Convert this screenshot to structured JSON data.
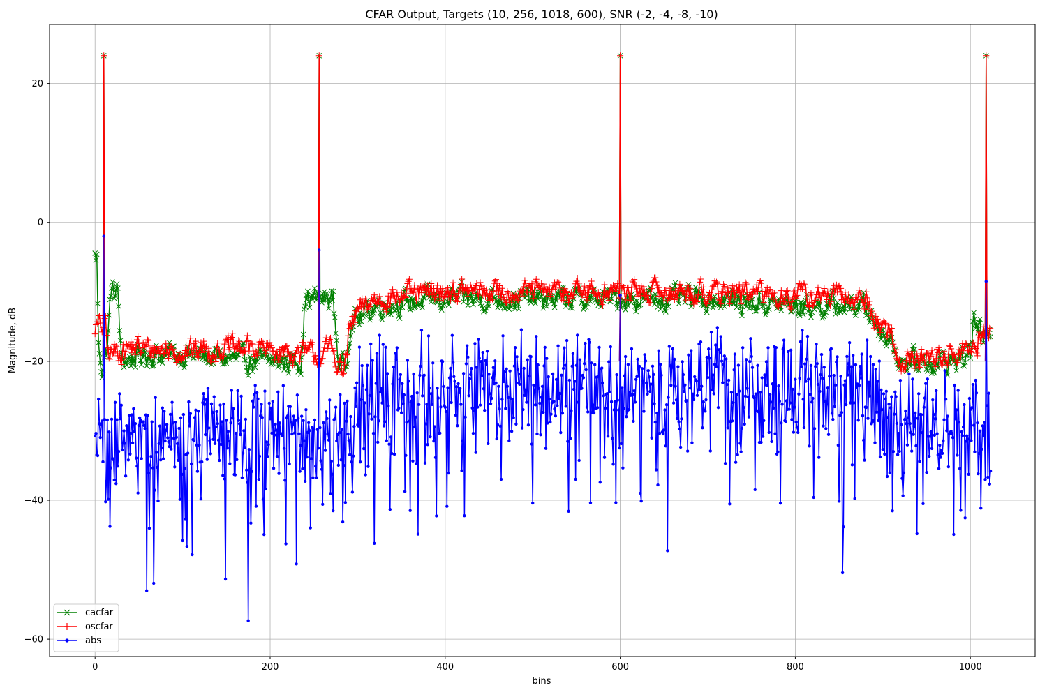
{
  "chart_data": {
    "type": "line",
    "title": "CFAR Output, Targets (10, 256, 1018, 600), SNR (-2, -4, -8, -10)",
    "xlabel": "bins",
    "ylabel": "Magnitude, dB",
    "xlim": [
      -52,
      1074
    ],
    "ylim": [
      -62.5,
      28.5
    ],
    "xticks": [
      0,
      200,
      400,
      600,
      800,
      1000
    ],
    "yticks": [
      -60,
      -40,
      -20,
      0,
      20
    ],
    "grid": true,
    "legend_position": "lower-left",
    "x_range": [
      0,
      1023
    ],
    "targets": [
      10,
      256,
      600,
      1018
    ],
    "series": [
      {
        "name": "cacfar",
        "color": "#008000",
        "marker": "x",
        "baseline": [
          [
            0,
            -5
          ],
          [
            2,
            -5
          ],
          [
            4,
            -18
          ],
          [
            8,
            -21
          ],
          [
            14,
            -18
          ],
          [
            18,
            -10
          ],
          [
            26,
            -10
          ],
          [
            30,
            -20
          ],
          [
            60,
            -19
          ],
          [
            100,
            -19
          ],
          [
            180,
            -20
          ],
          [
            235,
            -20
          ],
          [
            240,
            -11
          ],
          [
            252,
            -11
          ],
          [
            262,
            -11
          ],
          [
            272,
            -11
          ],
          [
            278,
            -20
          ],
          [
            286,
            -21
          ],
          [
            292,
            -14
          ],
          [
            300,
            -14
          ],
          [
            320,
            -12
          ],
          [
            400,
            -11
          ],
          [
            500,
            -11
          ],
          [
            600,
            -11
          ],
          [
            700,
            -11
          ],
          [
            800,
            -12
          ],
          [
            880,
            -12
          ],
          [
            895,
            -15
          ],
          [
            910,
            -17
          ],
          [
            920,
            -20
          ],
          [
            980,
            -20
          ],
          [
            1000,
            -19
          ],
          [
            1003,
            -14
          ],
          [
            1010,
            -15
          ],
          [
            1014,
            -17
          ],
          [
            1023,
            -17
          ]
        ],
        "noise": 1.3,
        "spikes": [
          {
            "x": 10,
            "y": 24
          },
          {
            "x": 256,
            "y": 24
          },
          {
            "x": 600,
            "y": 24
          },
          {
            "x": 1018,
            "y": 24
          }
        ]
      },
      {
        "name": "oscfar",
        "color": "#ff0000",
        "marker": "+",
        "baseline": [
          [
            0,
            -15
          ],
          [
            12,
            -15
          ],
          [
            14,
            -19
          ],
          [
            40,
            -18
          ],
          [
            100,
            -18.5
          ],
          [
            180,
            -18
          ],
          [
            200,
            -18.5
          ],
          [
            240,
            -19
          ],
          [
            260,
            -19
          ],
          [
            270,
            -18
          ],
          [
            284,
            -22
          ],
          [
            290,
            -16
          ],
          [
            300,
            -13
          ],
          [
            320,
            -11
          ],
          [
            400,
            -10
          ],
          [
            500,
            -10
          ],
          [
            600,
            -10
          ],
          [
            700,
            -10
          ],
          [
            800,
            -10.5
          ],
          [
            880,
            -11
          ],
          [
            890,
            -14
          ],
          [
            910,
            -16
          ],
          [
            918,
            -20
          ],
          [
            980,
            -19
          ],
          [
            1000,
            -18
          ],
          [
            1008,
            -19
          ],
          [
            1010,
            -16
          ],
          [
            1023,
            -16
          ]
        ],
        "noise": 1.3,
        "spikes": [
          {
            "x": 10,
            "y": 24
          },
          {
            "x": 256,
            "y": 24
          },
          {
            "x": 600,
            "y": 24
          },
          {
            "x": 1018,
            "y": 24
          }
        ]
      },
      {
        "name": "abs",
        "color": "#0000ff",
        "marker": "o",
        "baseline": [
          [
            0,
            -32
          ],
          [
            280,
            -32
          ],
          [
            292,
            -30
          ],
          [
            300,
            -25
          ],
          [
            400,
            -25
          ],
          [
            600,
            -25
          ],
          [
            800,
            -25
          ],
          [
            890,
            -25
          ],
          [
            905,
            -31
          ],
          [
            1023,
            -31
          ]
        ],
        "noise": 4.5,
        "spikes": [
          {
            "x": 10,
            "y": -2
          },
          {
            "x": 256,
            "y": -4
          },
          {
            "x": 600,
            "y": -10.5
          },
          {
            "x": 1018,
            "y": -8.5
          }
        ]
      }
    ]
  }
}
